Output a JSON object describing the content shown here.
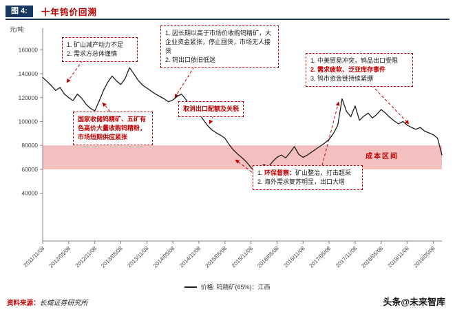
{
  "header": {
    "fig_label": "图 4:",
    "title": "十年钨价回溯"
  },
  "axis": {
    "y_unit": "元/吨"
  },
  "chart_data": {
    "type": "line",
    "title": "十年钨价回溯",
    "ylabel": "元/吨",
    "ylim": [
      0,
      170000
    ],
    "yticks": [
      40000,
      60000,
      80000,
      100000,
      120000,
      140000,
      160000
    ],
    "x_tick_labels": [
      "2011/11/08",
      "2012/05/08",
      "2012/11/08",
      "2013/05/08",
      "2013/11/08",
      "2014/05/08",
      "2014/11/08",
      "2015/05/08",
      "2015/11/08",
      "2016/05/08",
      "2016/11/08",
      "2017/05/08",
      "2017/11/08",
      "2018/05/08",
      "2018/11/08",
      "2019/05/08"
    ],
    "x_tick_month_index": [
      0,
      6,
      12,
      18,
      24,
      30,
      36,
      42,
      48,
      54,
      60,
      66,
      72,
      78,
      84,
      90
    ],
    "months_total": 92,
    "grid": false,
    "legend_position": "bottom-center",
    "series": [
      {
        "name": "价格: 钨精矿(65%)：江西",
        "color": "#1a1a1a",
        "values": [
          137000,
          133500,
          130000,
          126000,
          128500,
          123000,
          120000,
          117500,
          123000,
          119500,
          114500,
          111000,
          109000,
          117000,
          126000,
          133000,
          138000,
          134000,
          131000,
          136000,
          145000,
          140000,
          134500,
          130500,
          128000,
          125500,
          123000,
          121000,
          119000,
          116500,
          118000,
          121000,
          123000,
          118500,
          113500,
          109500,
          107000,
          101500,
          96500,
          93000,
          90500,
          88500,
          86000,
          80500,
          76000,
          72500,
          69500,
          66000,
          61500,
          58000,
          61500,
          64000,
          62000,
          66500,
          70000,
          72000,
          69500,
          74000,
          79000,
          72500,
          70000,
          72000,
          74500,
          77000,
          79500,
          82000,
          85000,
          90000,
          97000,
          119000,
          108500,
          104000,
          113000,
          101000,
          104500,
          107000,
          103000,
          106000,
          110000,
          107000,
          103500,
          100500,
          98000,
          100000,
          97000,
          95000,
          93500,
          95000,
          92000,
          90500,
          89000,
          86000,
          72000
        ]
      }
    ],
    "cost_band": {
      "label": "成本区间",
      "from": 60000,
      "to": 80000,
      "color": "#f4bfbf"
    }
  },
  "annotations": {
    "box1": {
      "lines": [
        "1. 矿山减产动力不足",
        "2. 需求方总体谨慎"
      ]
    },
    "box2": {
      "lines": [
        "1. 因长期以高于市场价收购钨精矿，大企业资金紧张，停止囤货，市场无人接货",
        "2. 钨出口依旧低迷"
      ]
    },
    "box3": {
      "lines": [
        {
          "text": "1. 中美贸易冲突，钨品出口受限",
          "red": false
        },
        {
          "text": "2. 需求疲软、泛亚库存事件",
          "red": true
        },
        {
          "text": "3. 钨市资金链持续紧绷",
          "red": false
        }
      ]
    },
    "box4": {
      "text": "国家收储钨精矿、五矿有色高价大量收购钨精粉，市场短期供应紧张"
    },
    "box5": {
      "text": "取消出口配额及关税"
    },
    "box6": {
      "line1_num": "1. ",
      "line1_red": "环保督察：",
      "line1_rest": "矿山整治，打击超采",
      "line2": "2. 海外需求复苏明显，出口大增"
    }
  },
  "legend": {
    "label": "价格: 钨精矿(65%)：江西"
  },
  "footer": {
    "source_label": "资料来源：",
    "source": "长城证券研究所",
    "watermark": "头条@未来智库"
  }
}
